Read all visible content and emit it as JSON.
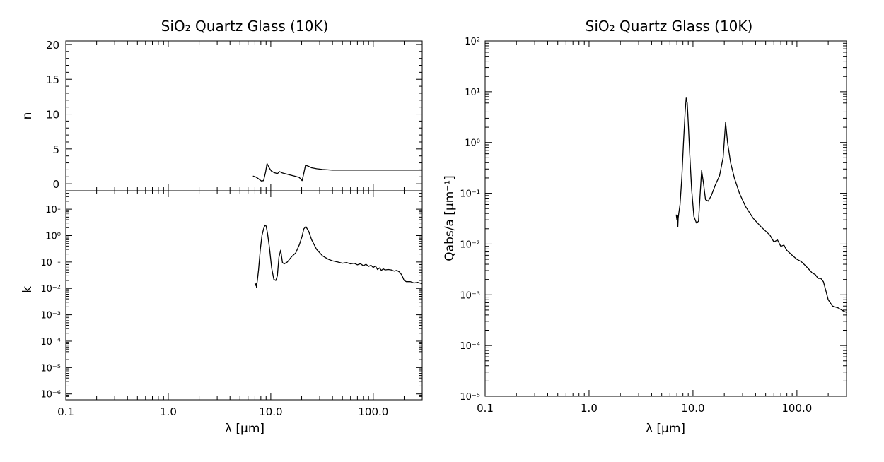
{
  "chart_data": [
    {
      "panel": "left-top",
      "type": "line",
      "title": "SiO₂ Quartz Glass (10K)",
      "xlabel": "λ [μm]",
      "ylabel": "n",
      "xscale": "log",
      "yscale": "linear",
      "xlim": [
        0.1,
        300
      ],
      "ylim": [
        -1,
        20.5
      ],
      "xticks": [
        "0.1",
        "1.0",
        "10.0",
        "100.0"
      ],
      "yticks": [
        "0",
        "5",
        "10",
        "15",
        "20"
      ],
      "x": [
        6.7,
        7.2,
        7.6,
        8.1,
        8.5,
        8.9,
        9.2,
        9.6,
        10.1,
        10.8,
        11.6,
        12.2,
        13.0,
        15.0,
        17.0,
        19.0,
        20.2,
        21.0,
        21.8,
        23.0,
        25.0,
        28.0,
        32.0,
        40.0,
        60.0,
        100.0,
        200.0,
        300.0
      ],
      "y": [
        1.1,
        0.95,
        0.7,
        0.4,
        0.45,
        1.7,
        2.9,
        2.35,
        1.85,
        1.6,
        1.45,
        1.75,
        1.55,
        1.3,
        1.1,
        0.9,
        0.45,
        1.5,
        2.65,
        2.55,
        2.3,
        2.15,
        2.05,
        1.95,
        1.95,
        1.95,
        1.95,
        1.95
      ]
    },
    {
      "panel": "left-bottom",
      "type": "line",
      "xlabel": "λ [μm]",
      "ylabel": "k",
      "xscale": "log",
      "yscale": "log",
      "xlim": [
        0.1,
        300
      ],
      "ylim": [
        6e-07,
        50
      ],
      "xticks": [
        "0.1",
        "1.0",
        "10.0",
        "100.0"
      ],
      "yticks": [
        "10⁻⁶",
        "10⁻⁵",
        "10⁻⁴",
        "10⁻³",
        "10⁻²",
        "10⁻¹",
        "10⁰",
        "10¹"
      ],
      "x": [
        7.0,
        7.1,
        7.2,
        7.25,
        7.3,
        7.4,
        7.6,
        7.9,
        8.2,
        8.5,
        8.8,
        9.0,
        9.3,
        9.7,
        10.2,
        10.7,
        11.2,
        11.6,
        12.0,
        12.5,
        13.0,
        13.5,
        14.5,
        16.0,
        17.5,
        19.0,
        20.2,
        21.0,
        22.0,
        23.5,
        25.0,
        28.0,
        32.0,
        36.0,
        40.0,
        45.0,
        50.0,
        55.0,
        60.0,
        65.0,
        70.0,
        75.0,
        80.0,
        85.0,
        90.0,
        95.0,
        100.0,
        105.0,
        110.0,
        115.0,
        120.0,
        125.0,
        130.0,
        140.0,
        150.0,
        160.0,
        170.0,
        180.0,
        190.0,
        200.0,
        210.0,
        230.0,
        250.0,
        270.0,
        300.0
      ],
      "y": [
        0.016,
        0.013,
        0.015,
        0.011,
        0.014,
        0.02,
        0.05,
        0.3,
        1.0,
        1.8,
        2.5,
        2.3,
        1.2,
        0.35,
        0.06,
        0.022,
        0.02,
        0.03,
        0.15,
        0.28,
        0.095,
        0.085,
        0.1,
        0.16,
        0.22,
        0.45,
        0.95,
        1.8,
        2.2,
        1.4,
        0.7,
        0.3,
        0.17,
        0.13,
        0.11,
        0.1,
        0.09,
        0.095,
        0.085,
        0.09,
        0.078,
        0.086,
        0.072,
        0.082,
        0.068,
        0.075,
        0.062,
        0.07,
        0.052,
        0.06,
        0.048,
        0.055,
        0.05,
        0.052,
        0.05,
        0.045,
        0.048,
        0.042,
        0.032,
        0.02,
        0.018,
        0.018,
        0.016,
        0.017,
        0.015
      ]
    },
    {
      "panel": "right",
      "type": "line",
      "title": "SiO₂ Quartz Glass (10K)",
      "xlabel": "λ [μm]",
      "ylabel": "Qabs/a [μm⁻¹]",
      "xscale": "log",
      "yscale": "log",
      "xlim": [
        0.1,
        300
      ],
      "ylim": [
        1e-05,
        100
      ],
      "xticks": [
        "0.1",
        "1.0",
        "10.0",
        "100.0"
      ],
      "yticks": [
        "10⁻⁵",
        "10⁻⁴",
        "10⁻³",
        "10⁻²",
        "10⁻¹",
        "10⁰",
        "10¹",
        "10²"
      ],
      "x": [
        6.9,
        7.0,
        7.1,
        7.15,
        7.2,
        7.3,
        7.5,
        7.8,
        8.1,
        8.4,
        8.6,
        8.8,
        9.0,
        9.3,
        9.7,
        10.2,
        10.8,
        11.3,
        11.7,
        12.1,
        12.6,
        13.2,
        14.0,
        15.0,
        16.5,
        18.0,
        19.5,
        20.6,
        21.5,
        23.0,
        25.0,
        28.0,
        32.0,
        38.0,
        45.0,
        55.0,
        60.0,
        65.0,
        70.0,
        75.0,
        80.0,
        90.0,
        100.0,
        110.0,
        120.0,
        130.0,
        140.0,
        150.0,
        160.0,
        170.0,
        180.0,
        190.0,
        200.0,
        220.0,
        250.0,
        280.0,
        300.0
      ],
      "y": [
        0.038,
        0.03,
        0.036,
        0.022,
        0.032,
        0.04,
        0.06,
        0.2,
        1.0,
        4.0,
        7.5,
        6.0,
        2.5,
        0.6,
        0.12,
        0.035,
        0.026,
        0.028,
        0.09,
        0.28,
        0.16,
        0.075,
        0.07,
        0.09,
        0.15,
        0.22,
        0.5,
        2.5,
        1.0,
        0.4,
        0.2,
        0.1,
        0.055,
        0.032,
        0.022,
        0.015,
        0.011,
        0.012,
        0.009,
        0.0095,
        0.0075,
        0.006,
        0.005,
        0.0045,
        0.0038,
        0.0032,
        0.0027,
        0.0025,
        0.0021,
        0.0021,
        0.0018,
        0.0012,
        0.0008,
        0.0006,
        0.00055,
        0.00048,
        0.00045
      ]
    }
  ]
}
